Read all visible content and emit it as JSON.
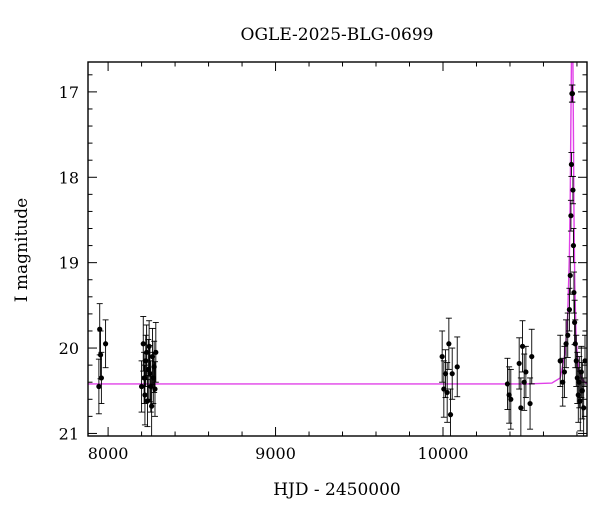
{
  "chart_data": {
    "type": "scatter",
    "title": "OGLE-2025-BLG-0699",
    "xlabel": "HJD - 2450000",
    "ylabel": "I magnitude",
    "xlim": [
      7880,
      10860
    ],
    "ylim": [
      21.03,
      16.65
    ],
    "y_inverted": true,
    "x_ticks": [
      8000,
      9000,
      10000
    ],
    "y_ticks": [
      17,
      18,
      19,
      20,
      21
    ],
    "grid": false,
    "colors": {
      "data": "#000000",
      "model": "#e040e8",
      "axes": "#000000"
    },
    "series": [
      {
        "kind": "points_with_errorbars",
        "points": [
          [
            7945,
            20.45,
            0.32
          ],
          [
            7950,
            19.78,
            0.3
          ],
          [
            7955,
            20.08,
            0.28
          ],
          [
            7960,
            20.35,
            0.3
          ],
          [
            7985,
            19.95,
            0.28
          ],
          [
            8200,
            20.45,
            0.3
          ],
          [
            8210,
            19.95,
            0.32
          ],
          [
            8215,
            20.35,
            0.3
          ],
          [
            8220,
            20.55,
            0.35
          ],
          [
            8225,
            20.15,
            0.3
          ],
          [
            8230,
            20.05,
            0.32
          ],
          [
            8235,
            20.62,
            0.3
          ],
          [
            8240,
            20.25,
            0.35
          ],
          [
            8245,
            19.98,
            0.3
          ],
          [
            8250,
            20.3,
            0.33
          ],
          [
            8255,
            20.45,
            0.3
          ],
          [
            8260,
            20.68,
            0.35
          ],
          [
            8265,
            20.1,
            0.33
          ],
          [
            8270,
            20.35,
            0.3
          ],
          [
            8275,
            20.22,
            0.3
          ],
          [
            8280,
            20.48,
            0.32
          ],
          [
            8285,
            20.05,
            0.35
          ],
          [
            9995,
            20.1,
            0.3
          ],
          [
            10005,
            20.48,
            0.33
          ],
          [
            10015,
            20.3,
            0.28
          ],
          [
            10025,
            20.52,
            0.35
          ],
          [
            10035,
            19.95,
            0.3
          ],
          [
            10045,
            20.78,
            0.3
          ],
          [
            10055,
            20.3,
            0.3
          ],
          [
            10085,
            20.22,
            0.35
          ],
          [
            10385,
            20.42,
            0.3
          ],
          [
            10395,
            20.55,
            0.33
          ],
          [
            10405,
            20.6,
            0.35
          ],
          [
            10455,
            20.18,
            0.3
          ],
          [
            10465,
            20.7,
            0.35
          ],
          [
            10475,
            19.98,
            0.3
          ],
          [
            10485,
            20.4,
            0.33
          ],
          [
            10495,
            20.28,
            0.3
          ],
          [
            10520,
            20.65,
            0.3
          ],
          [
            10530,
            20.1,
            0.32
          ],
          [
            10700,
            20.15,
            0.3
          ],
          [
            10715,
            20.4,
            0.28
          ],
          [
            10725,
            20.28,
            0.3
          ],
          [
            10735,
            19.95,
            0.28
          ],
          [
            10745,
            19.85,
            0.26
          ],
          [
            10755,
            19.55,
            0.25
          ],
          [
            10760,
            19.15,
            0.22
          ],
          [
            10764,
            18.45,
            0.18
          ],
          [
            10767,
            17.85,
            0.14
          ],
          [
            10770,
            17.02,
            0.1
          ],
          [
            10773,
            17.02,
            0.1
          ],
          [
            10776,
            18.15,
            0.16
          ],
          [
            10779,
            18.8,
            0.2
          ],
          [
            10782,
            19.35,
            0.24
          ],
          [
            10786,
            19.7,
            0.26
          ],
          [
            10790,
            19.95,
            0.28
          ],
          [
            10796,
            20.15,
            0.3
          ],
          [
            10802,
            20.35,
            0.3
          ],
          [
            10808,
            20.55,
            0.32
          ],
          [
            10814,
            20.4,
            0.3
          ],
          [
            10820,
            20.62,
            0.35
          ],
          [
            10826,
            20.28,
            0.3
          ],
          [
            10832,
            20.5,
            0.33
          ],
          [
            10840,
            20.7,
            0.35
          ],
          [
            10848,
            20.15,
            0.3
          ]
        ]
      },
      {
        "kind": "model_line",
        "points": [
          [
            7880,
            20.42
          ],
          [
            10500,
            20.42
          ],
          [
            10650,
            20.41
          ],
          [
            10700,
            20.35
          ],
          [
            10730,
            20.05
          ],
          [
            10745,
            19.6
          ],
          [
            10755,
            18.9
          ],
          [
            10760,
            18.2
          ],
          [
            10764,
            17.3
          ],
          [
            10767,
            16.65
          ],
          [
            10776,
            16.65
          ],
          [
            10779,
            17.5
          ],
          [
            10782,
            18.4
          ],
          [
            10787,
            19.25
          ],
          [
            10795,
            19.9
          ],
          [
            10810,
            20.25
          ],
          [
            10835,
            20.38
          ],
          [
            10860,
            20.42
          ]
        ]
      }
    ]
  }
}
